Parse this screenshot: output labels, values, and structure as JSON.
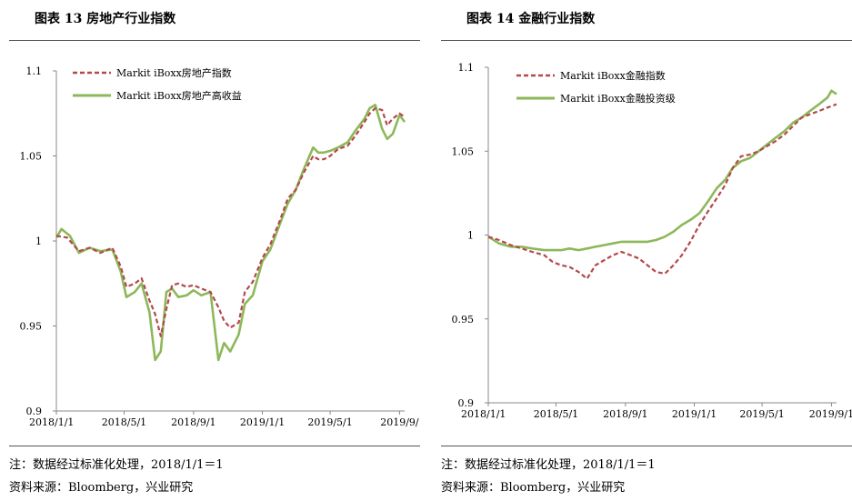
{
  "left": {
    "title": "图表 13  房地产行业指数",
    "note": "注：数据经过标准化处理，2018/1/1＝1",
    "source": "资料来源：Bloomberg，兴业研究"
  },
  "right": {
    "title": "图表 14  金融行业指数",
    "note": "注：数据经过标准化处理，2018/1/1＝1",
    "source": "资料来源：Bloomberg，兴业研究"
  },
  "chart_data": [
    {
      "type": "line",
      "title": "图表 13  房地产行业指数",
      "ylim": [
        0.9,
        1.1
      ],
      "yticks": [
        "0.9",
        "0.95",
        "1",
        "1.05",
        "1.1"
      ],
      "xticks": [
        "2018/1/1",
        "2018/5/1",
        "2018/9/1",
        "2019/1/1",
        "2019/5/1",
        "2019/9/"
      ],
      "xlim": [
        "2018/1/1",
        "2019/9/10"
      ],
      "legend_position": "top-left",
      "grid": false,
      "series": [
        {
          "name": "Markit iBoxx房地产指数",
          "color": "#B5484B",
          "style": "dashed",
          "x": [
            "2018/1/1",
            "2018/1/20",
            "2018/2/10",
            "2018/3/1",
            "2018/3/20",
            "2018/4/10",
            "2018/4/25",
            "2018/5/5",
            "2018/5/20",
            "2018/6/1",
            "2018/6/15",
            "2018/6/25",
            "2018/7/5",
            "2018/7/15",
            "2018/7/25",
            "2018/8/5",
            "2018/8/20",
            "2018/9/1",
            "2018/9/15",
            "2018/10/1",
            "2018/10/15",
            "2018/10/25",
            "2018/11/5",
            "2018/11/20",
            "2018/12/1",
            "2018/12/15",
            "2019/1/1",
            "2019/1/15",
            "2019/2/1",
            "2019/2/15",
            "2019/3/1",
            "2019/3/15",
            "2019/4/1",
            "2019/4/10",
            "2019/4/20",
            "2019/5/1",
            "2019/5/15",
            "2019/6/1",
            "2019/6/15",
            "2019/7/1",
            "2019/7/10",
            "2019/7/20",
            "2019/8/1",
            "2019/8/10",
            "2019/8/20",
            "2019/9/1",
            "2019/9/10"
          ],
          "y": [
            1.003,
            1.002,
            0.994,
            0.996,
            0.993,
            0.996,
            0.985,
            0.973,
            0.975,
            0.978,
            0.965,
            0.957,
            0.944,
            0.96,
            0.974,
            0.975,
            0.973,
            0.974,
            0.972,
            0.97,
            0.961,
            0.953,
            0.949,
            0.952,
            0.97,
            0.976,
            0.99,
            0.998,
            1.012,
            1.025,
            1.03,
            1.04,
            1.05,
            1.048,
            1.048,
            1.05,
            1.054,
            1.056,
            1.062,
            1.07,
            1.075,
            1.078,
            1.077,
            1.068,
            1.072,
            1.075,
            1.073
          ]
        },
        {
          "name": "Markit iBoxx房地产高收益",
          "color": "#8DB85A",
          "style": "solid",
          "x": [
            "2018/1/1",
            "2018/1/10",
            "2018/1/25",
            "2018/2/10",
            "2018/3/1",
            "2018/3/20",
            "2018/4/10",
            "2018/4/25",
            "2018/5/5",
            "2018/5/20",
            "2018/6/1",
            "2018/6/15",
            "2018/6/25",
            "2018/7/5",
            "2018/7/15",
            "2018/7/25",
            "2018/8/5",
            "2018/8/20",
            "2018/9/1",
            "2018/9/15",
            "2018/10/1",
            "2018/10/15",
            "2018/10/25",
            "2018/11/5",
            "2018/11/20",
            "2018/12/1",
            "2018/12/15",
            "2019/1/1",
            "2019/1/15",
            "2019/2/1",
            "2019/2/15",
            "2019/3/1",
            "2019/3/15",
            "2019/4/1",
            "2019/4/10",
            "2019/4/20",
            "2019/5/1",
            "2019/5/15",
            "2019/6/1",
            "2019/6/15",
            "2019/7/1",
            "2019/7/10",
            "2019/7/20",
            "2019/8/1",
            "2019/8/10",
            "2019/8/20",
            "2019/9/1",
            "2019/9/10"
          ],
          "y": [
            1.002,
            1.007,
            1.003,
            0.993,
            0.996,
            0.994,
            0.995,
            0.982,
            0.967,
            0.97,
            0.975,
            0.958,
            0.93,
            0.935,
            0.97,
            0.972,
            0.967,
            0.968,
            0.971,
            0.968,
            0.97,
            0.93,
            0.94,
            0.935,
            0.945,
            0.963,
            0.968,
            0.988,
            0.995,
            1.01,
            1.022,
            1.03,
            1.042,
            1.055,
            1.052,
            1.052,
            1.053,
            1.055,
            1.058,
            1.065,
            1.072,
            1.078,
            1.08,
            1.066,
            1.06,
            1.063,
            1.074,
            1.07
          ]
        }
      ]
    },
    {
      "type": "line",
      "title": "图表 14  金融行业指数",
      "ylim": [
        0.9,
        1.1
      ],
      "yticks": [
        "0.9",
        "0.95",
        "1",
        "1.05",
        "1.1"
      ],
      "xticks": [
        "2018/1/1",
        "2018/5/1",
        "2018/9/1",
        "2019/1/1",
        "2019/5/1",
        "2019/9/1"
      ],
      "xlim": [
        "2018/1/1",
        "2019/9/10"
      ],
      "legend_position": "top-left",
      "grid": false,
      "series": [
        {
          "name": "Markit iBoxx金融指数",
          "color": "#B5484B",
          "style": "dashed",
          "x": [
            "2018/1/1",
            "2018/1/20",
            "2018/2/10",
            "2018/3/1",
            "2018/3/20",
            "2018/4/10",
            "2018/4/25",
            "2018/5/10",
            "2018/5/25",
            "2018/6/10",
            "2018/6/25",
            "2018/7/10",
            "2018/7/25",
            "2018/8/10",
            "2018/8/25",
            "2018/9/10",
            "2018/9/25",
            "2018/10/10",
            "2018/10/25",
            "2018/11/10",
            "2018/11/25",
            "2018/12/10",
            "2018/12/25",
            "2019/1/10",
            "2019/1/25",
            "2019/2/10",
            "2019/2/25",
            "2019/3/10",
            "2019/3/25",
            "2019/4/10",
            "2019/4/25",
            "2019/5/10",
            "2019/5/25",
            "2019/6/10",
            "2019/6/25",
            "2019/7/10",
            "2019/7/25",
            "2019/8/10",
            "2019/8/25",
            "2019/9/10"
          ],
          "y": [
            0.999,
            0.997,
            0.994,
            0.992,
            0.99,
            0.988,
            0.984,
            0.982,
            0.981,
            0.978,
            0.974,
            0.982,
            0.985,
            0.988,
            0.99,
            0.988,
            0.986,
            0.982,
            0.978,
            0.977,
            0.982,
            0.988,
            0.996,
            1.006,
            1.014,
            1.022,
            1.03,
            1.04,
            1.047,
            1.048,
            1.05,
            1.053,
            1.056,
            1.06,
            1.065,
            1.07,
            1.072,
            1.074,
            1.076,
            1.078
          ]
        },
        {
          "name": "Markit iBoxx金融投资级",
          "color": "#8DB85A",
          "style": "solid",
          "x": [
            "2018/1/1",
            "2018/1/20",
            "2018/2/10",
            "2018/3/1",
            "2018/3/20",
            "2018/4/10",
            "2018/4/25",
            "2018/5/10",
            "2018/5/25",
            "2018/6/10",
            "2018/6/25",
            "2018/7/10",
            "2018/7/25",
            "2018/8/10",
            "2018/8/25",
            "2018/9/10",
            "2018/9/25",
            "2018/10/10",
            "2018/10/25",
            "2018/11/10",
            "2018/11/25",
            "2018/12/10",
            "2018/12/25",
            "2019/1/10",
            "2019/1/25",
            "2019/2/10",
            "2019/2/25",
            "2019/3/10",
            "2019/3/25",
            "2019/4/10",
            "2019/4/25",
            "2019/5/10",
            "2019/5/25",
            "2019/6/10",
            "2019/6/25",
            "2019/7/10",
            "2019/7/25",
            "2019/8/10",
            "2019/8/25",
            "2019/9/1",
            "2019/9/10"
          ],
          "y": [
            0.999,
            0.995,
            0.993,
            0.993,
            0.992,
            0.991,
            0.991,
            0.991,
            0.992,
            0.991,
            0.992,
            0.993,
            0.994,
            0.995,
            0.996,
            0.996,
            0.996,
            0.996,
            0.997,
            0.999,
            1.002,
            1.006,
            1.009,
            1.013,
            1.02,
            1.028,
            1.033,
            1.04,
            1.044,
            1.046,
            1.05,
            1.054,
            1.058,
            1.062,
            1.067,
            1.07,
            1.074,
            1.078,
            1.082,
            1.086,
            1.084
          ]
        }
      ]
    }
  ]
}
